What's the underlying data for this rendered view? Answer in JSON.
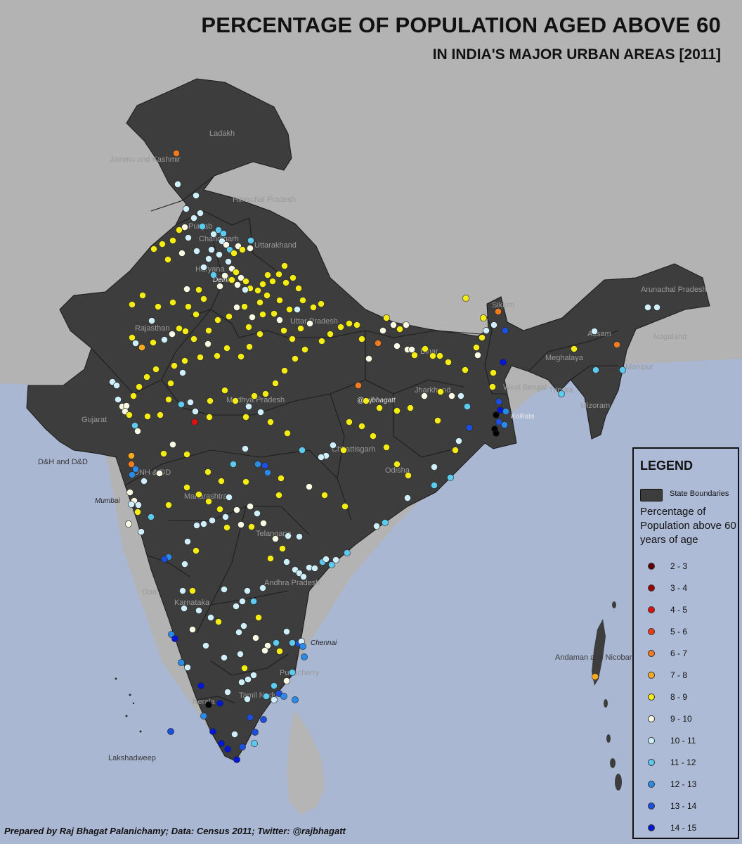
{
  "title": "PERCENTAGE OF POPULATION AGED ABOVE 60",
  "subtitle": "IN INDIA'S MAJOR URBAN AREAS [2011]",
  "watermark": "@rajbhagatt",
  "footer": "Prepared by Raj Bhagat Palanichamy; Data: Census 2011; Twitter: @rajbhagatt",
  "colors": {
    "background": "#b3b3b3",
    "sea": "#a9b7d3",
    "land": "#3d3d3d",
    "state_boundary": "#1e1e1e"
  },
  "region_labels": [
    {
      "id": "ladakh",
      "text": "Ladakh"
    },
    {
      "id": "jk",
      "text": "Jammu and Kashmir"
    },
    {
      "id": "hp",
      "text": "Himachal Pradesh"
    },
    {
      "id": "uk",
      "text": "Uttarakhand"
    },
    {
      "id": "rj",
      "text": "Rajasthan"
    },
    {
      "id": "up",
      "text": "Uttar Pradesh"
    },
    {
      "id": "br",
      "text": "Bihar"
    },
    {
      "id": "sk",
      "text": "Sikkim"
    },
    {
      "id": "ar",
      "text": "Arunachal Pradesh"
    },
    {
      "id": "as",
      "text": "Assam"
    },
    {
      "id": "nl",
      "text": "Nagaland"
    },
    {
      "id": "mg",
      "text": "Meghalaya"
    },
    {
      "id": "mn",
      "text": "Manipur"
    },
    {
      "id": "tr",
      "text": "Tripura"
    },
    {
      "id": "mz",
      "text": "Mizoram"
    },
    {
      "id": "wb",
      "text": "West Bengal"
    },
    {
      "id": "jh",
      "text": "Jharkhand"
    },
    {
      "id": "mp",
      "text": "Madhya Pradesh"
    },
    {
      "id": "gj",
      "text": "Gujarat"
    },
    {
      "id": "dd",
      "text": "D&H and D&D"
    },
    {
      "id": "dnh",
      "text": "DNH & DD"
    },
    {
      "id": "cg",
      "text": "Chhattisgarh"
    },
    {
      "id": "od",
      "text": "Odisha"
    },
    {
      "id": "mh",
      "text": "Maharashtra"
    },
    {
      "id": "tg",
      "text": "Telangana"
    },
    {
      "id": "ap",
      "text": "Andhra Pradesh"
    },
    {
      "id": "ga",
      "text": "Goa"
    },
    {
      "id": "ka",
      "text": "Karnataka"
    },
    {
      "id": "py",
      "text": "Puducherry"
    },
    {
      "id": "tn",
      "text": "Tamil Nadu"
    },
    {
      "id": "kl",
      "text": "Kerala"
    },
    {
      "id": "ld",
      "text": "Lakshadweep"
    },
    {
      "id": "an",
      "text": "Andaman and Nicobar"
    },
    {
      "id": "pb",
      "text": "Punjab"
    },
    {
      "id": "hr",
      "text": "Haryana"
    },
    {
      "id": "ch",
      "text": "Chandigarh"
    }
  ],
  "city_labels": [
    {
      "id": "delhi",
      "text": "Delhi"
    },
    {
      "id": "kolkata",
      "text": "Kolkata"
    },
    {
      "id": "mumbai",
      "text": "Mumbai"
    },
    {
      "id": "chennai",
      "text": "Chennai"
    }
  ],
  "legend": {
    "title": "LEGEND",
    "boundary_label": "State Boundaries",
    "subtitle": "Percentage of Population above 60 years of age",
    "classes": [
      {
        "range": "2 - 3",
        "color": "#5e0000"
      },
      {
        "range": "3 - 4",
        "color": "#9b0000"
      },
      {
        "range": "4 - 5",
        "color": "#dd1111"
      },
      {
        "range": "5 - 6",
        "color": "#ee3d16"
      },
      {
        "range": "6 - 7",
        "color": "#f27b1f"
      },
      {
        "range": "7 - 8",
        "color": "#f9ab1e"
      },
      {
        "range": "8 - 9",
        "color": "#f4ec12"
      },
      {
        "range": "9 - 10",
        "color": "#fbfae4"
      },
      {
        "range": "10 - 11",
        "color": "#cff0fb"
      },
      {
        "range": "11 - 12",
        "color": "#5dcbf0"
      },
      {
        "range": "12 - 13",
        "color": "#2a8be8"
      },
      {
        "range": "13 - 14",
        "color": "#1b4fe0"
      },
      {
        "range": "14 - 15",
        "color": "#0018d6"
      }
    ]
  }
}
